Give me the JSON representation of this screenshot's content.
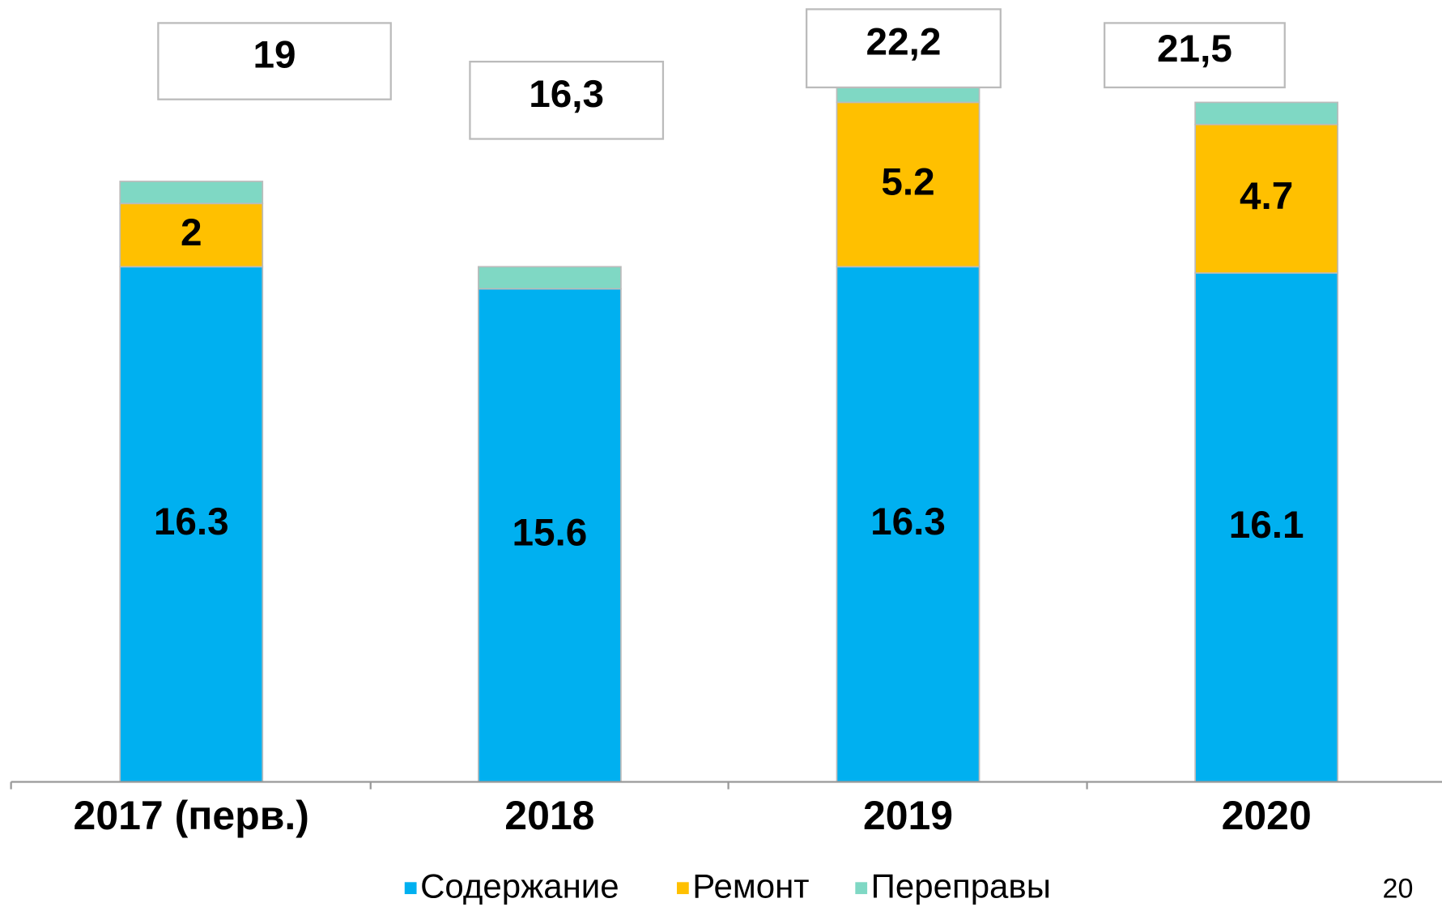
{
  "chart_data": {
    "type": "stacked_bar",
    "categories": [
      "2017 (перв.)",
      "2018",
      "2019",
      "2020"
    ],
    "series": [
      {
        "name": "Содержание",
        "color": "#00b0f0",
        "values": [
          16.3,
          15.6,
          16.3,
          16.1
        ],
        "labels": true
      },
      {
        "name": "Ремонт",
        "color": "#ffc000",
        "values": [
          2,
          0,
          5.2,
          4.7
        ],
        "labels": true
      },
      {
        "name": "Переправы",
        "color": "#7fd8c4",
        "values": [
          0.7,
          0.7,
          0.7,
          0.7
        ],
        "labels": false
      }
    ],
    "totals": [
      19,
      16.3,
      22.2,
      21.5
    ],
    "total_labels": [
      "19",
      "16,3",
      "22,2",
      "21,5"
    ],
    "ylim": [
      0,
      24
    ],
    "legend": "bottom",
    "page_number": "20"
  }
}
